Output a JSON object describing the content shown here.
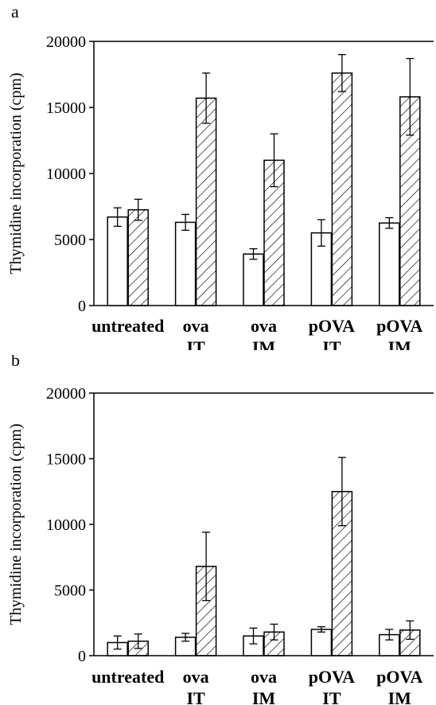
{
  "chart_data": [
    {
      "type": "bar",
      "panel_label": "a",
      "categories": [
        [
          "untreated"
        ],
        [
          "ova",
          "IT"
        ],
        [
          "ova",
          "IM"
        ],
        [
          "pOVA",
          "IT"
        ],
        [
          "pOVA",
          "IM"
        ]
      ],
      "ylabel": "Thymidine incorporation (cpm)",
      "ylim": [
        0,
        20000
      ],
      "yticks": [
        0,
        5000,
        10000,
        15000,
        20000
      ],
      "ytick_labels": [
        "0",
        "5000",
        "10000",
        "15000",
        "20000"
      ],
      "series": [
        {
          "pattern": "open",
          "values": [
            6700,
            6300,
            3900,
            5500,
            6250
          ],
          "errors": [
            700,
            600,
            400,
            1000,
            400
          ]
        },
        {
          "pattern": "hatched",
          "values": [
            7250,
            15700,
            11000,
            17600,
            15800
          ],
          "errors": [
            800,
            1900,
            2000,
            1400,
            2900
          ]
        }
      ]
    },
    {
      "type": "bar",
      "panel_label": "b",
      "categories": [
        [
          "untreated"
        ],
        [
          "ova",
          "IT"
        ],
        [
          "ova",
          "IM"
        ],
        [
          "pOVA",
          "IT"
        ],
        [
          "pOVA",
          "IM"
        ]
      ],
      "ylabel": "Thymidine incorporation (cpm)",
      "ylim": [
        0,
        20000
      ],
      "yticks": [
        0,
        5000,
        10000,
        15000,
        20000
      ],
      "ytick_labels": [
        "0",
        "5000",
        "10000",
        "15000",
        "20000"
      ],
      "series": [
        {
          "pattern": "open",
          "values": [
            1000,
            1400,
            1500,
            2000,
            1600
          ],
          "errors": [
            500,
            300,
            600,
            200,
            400
          ]
        },
        {
          "pattern": "hatched",
          "values": [
            1100,
            6800,
            1800,
            12500,
            1950
          ],
          "errors": [
            550,
            2600,
            600,
            2600,
            700
          ]
        }
      ]
    }
  ]
}
